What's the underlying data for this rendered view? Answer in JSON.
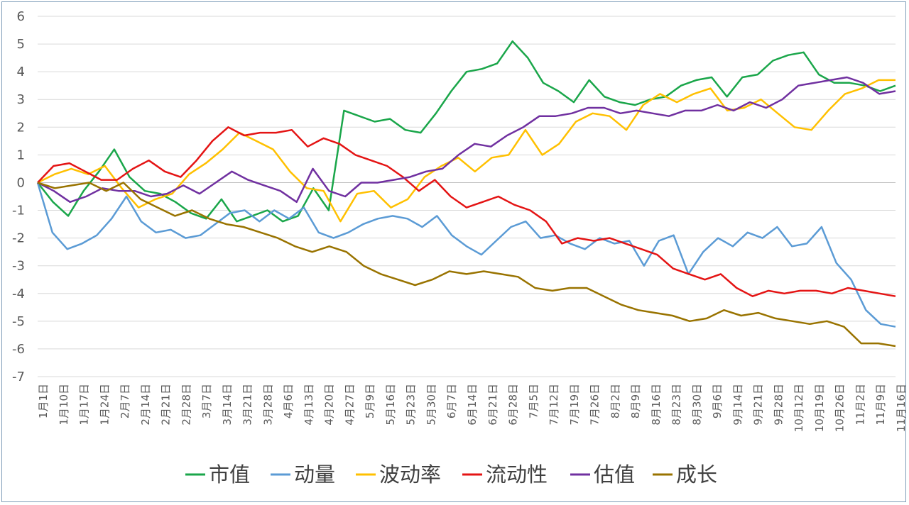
{
  "chart_data": {
    "type": "line",
    "title": "",
    "xlabel": "",
    "ylabel": "",
    "ylim": [
      -7,
      6
    ],
    "yticks": [
      6,
      5,
      4,
      3,
      2,
      1,
      0,
      -1,
      -2,
      -3,
      -4,
      -5,
      -6,
      -7
    ],
    "grid": "horizontal",
    "legend_position": "bottom",
    "x_tick_labels": [
      "1月1日",
      "1月10日",
      "1月17日",
      "1月24日",
      "2月7日",
      "2月14日",
      "2月21日",
      "2月28日",
      "3月7日",
      "3月14日",
      "3月21日",
      "3月28日",
      "4月6日",
      "4月13日",
      "4月20日",
      "4月27日",
      "5月9日",
      "5月16日",
      "5月23日",
      "5月30日",
      "6月7日",
      "6月14日",
      "6月21日",
      "6月28日",
      "7月5日",
      "7月12日",
      "7月19日",
      "7月26日",
      "8月2日",
      "8月9日",
      "8月16日",
      "8月23日",
      "8月30日",
      "9月6日",
      "9月14日",
      "9月21日",
      "9月28日",
      "10月12日",
      "10月19日",
      "10月26日",
      "11月2日",
      "11月9日",
      "11月16日"
    ],
    "series": [
      {
        "name": "市值",
        "color": "#1aa64a",
        "values": [
          0,
          -0.7,
          -1.2,
          -0.3,
          0.4,
          1.2,
          0.2,
          -0.3,
          -0.4,
          -0.7,
          -1.1,
          -1.3,
          -0.6,
          -1.4,
          -1.2,
          -1.0,
          -1.4,
          -1.2,
          -0.2,
          -1.0,
          2.6,
          2.4,
          2.2,
          2.3,
          1.9,
          1.8,
          2.5,
          3.3,
          4.0,
          4.1,
          4.3,
          5.1,
          4.5,
          3.6,
          3.3,
          2.9,
          3.7,
          3.1,
          2.9,
          2.8,
          3.0,
          3.1,
          3.5,
          3.7,
          3.8,
          3.1,
          3.8,
          3.9,
          4.4,
          4.6,
          4.7,
          3.9,
          3.6,
          3.6,
          3.5,
          3.3,
          3.5
        ]
      },
      {
        "name": "动量",
        "color": "#5b9bd5",
        "values": [
          0,
          -1.8,
          -2.4,
          -2.2,
          -1.9,
          -1.3,
          -0.5,
          -1.4,
          -1.8,
          -1.7,
          -2.0,
          -1.9,
          -1.5,
          -1.1,
          -1.0,
          -1.4,
          -1.0,
          -1.3,
          -0.9,
          -1.8,
          -2.0,
          -1.8,
          -1.5,
          -1.3,
          -1.2,
          -1.3,
          -1.6,
          -1.2,
          -1.9,
          -2.3,
          -2.6,
          -2.1,
          -1.6,
          -1.4,
          -2.0,
          -1.9,
          -2.2,
          -2.4,
          -2.0,
          -2.2,
          -2.1,
          -3.0,
          -2.1,
          -1.9,
          -3.3,
          -2.5,
          -2.0,
          -2.3,
          -1.8,
          -2.0,
          -1.6,
          -2.3,
          -2.2,
          -1.6,
          -2.9,
          -3.5,
          -4.6,
          -5.1,
          -5.2
        ]
      },
      {
        "name": "波动率",
        "color": "#ffc000",
        "values": [
          0,
          0.3,
          0.5,
          0.3,
          0.6,
          -0.2,
          -0.9,
          -0.6,
          -0.4,
          0.3,
          0.7,
          1.2,
          1.8,
          1.5,
          1.2,
          0.4,
          -0.2,
          -0.3,
          -1.4,
          -0.4,
          -0.3,
          -0.9,
          -0.6,
          0.2,
          0.6,
          0.9,
          0.4,
          0.9,
          1.0,
          1.9,
          1.0,
          1.4,
          2.2,
          2.5,
          2.4,
          1.9,
          2.8,
          3.2,
          2.9,
          3.2,
          3.4,
          2.6,
          2.7,
          3.0,
          2.5,
          2.0,
          1.9,
          2.6,
          3.2,
          3.4,
          3.7,
          3.7
        ]
      },
      {
        "name": "流动性",
        "color": "#e41414",
        "values": [
          0,
          0.6,
          0.7,
          0.4,
          0.1,
          0.1,
          0.5,
          0.8,
          0.4,
          0.2,
          0.8,
          1.5,
          2.0,
          1.7,
          1.8,
          1.8,
          1.9,
          1.3,
          1.6,
          1.4,
          1.0,
          0.8,
          0.6,
          0.2,
          -0.3,
          0.1,
          -0.5,
          -0.9,
          -0.7,
          -0.5,
          -0.8,
          -1.0,
          -1.4,
          -2.2,
          -2.0,
          -2.1,
          -2.0,
          -2.2,
          -2.4,
          -2.6,
          -3.1,
          -3.3,
          -3.5,
          -3.3,
          -3.8,
          -4.1,
          -3.9,
          -4.0,
          -3.9,
          -3.9,
          -4.0,
          -3.8,
          -3.9,
          -4.0,
          -4.1
        ]
      },
      {
        "name": "估值",
        "color": "#7030a0",
        "values": [
          0,
          -0.3,
          -0.7,
          -0.5,
          -0.2,
          -0.3,
          -0.3,
          -0.5,
          -0.4,
          -0.1,
          -0.4,
          0.0,
          0.4,
          0.1,
          -0.1,
          -0.3,
          -0.7,
          0.5,
          -0.3,
          -0.5,
          0.0,
          0.0,
          0.1,
          0.2,
          0.4,
          0.5,
          1.0,
          1.4,
          1.3,
          1.7,
          2.0,
          2.4,
          2.4,
          2.5,
          2.7,
          2.7,
          2.5,
          2.6,
          2.5,
          2.4,
          2.6,
          2.6,
          2.8,
          2.6,
          2.9,
          2.7,
          3.0,
          3.5,
          3.6,
          3.7,
          3.8,
          3.6,
          3.2,
          3.3
        ]
      },
      {
        "name": "成长",
        "color": "#997300",
        "values": [
          0,
          -0.2,
          -0.1,
          0.0,
          -0.3,
          0.0,
          -0.6,
          -0.9,
          -1.2,
          -1.0,
          -1.3,
          -1.5,
          -1.6,
          -1.8,
          -2.0,
          -2.3,
          -2.5,
          -2.3,
          -2.5,
          -3.0,
          -3.3,
          -3.5,
          -3.7,
          -3.5,
          -3.2,
          -3.3,
          -3.2,
          -3.3,
          -3.4,
          -3.8,
          -3.9,
          -3.8,
          -3.8,
          -4.1,
          -4.4,
          -4.6,
          -4.7,
          -4.8,
          -5.0,
          -4.9,
          -4.6,
          -4.8,
          -4.7,
          -4.9,
          -5.0,
          -5.1,
          -5.0,
          -5.2,
          -5.8,
          -5.8,
          -5.9
        ]
      }
    ]
  }
}
